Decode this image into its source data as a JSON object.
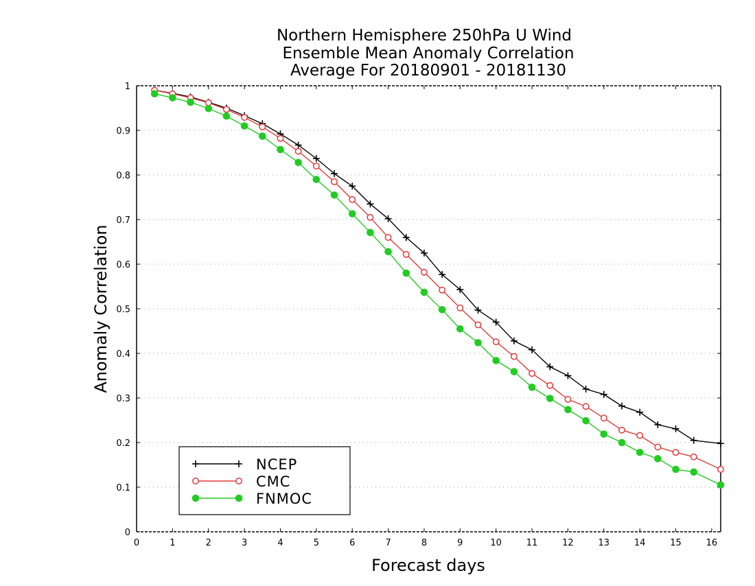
{
  "chart_data": {
    "type": "line",
    "title_lines": [
      "Northern Hemisphere 250hPa U Wind",
      "Ensemble Mean Anomaly Correlation",
      "Average For 20180901 - 20181130"
    ],
    "xlabel": "Forecast days",
    "ylabel": "Anomaly Correlation",
    "xlim": [
      0,
      16.25
    ],
    "ylim": [
      0,
      1
    ],
    "x_ticks": [
      0,
      1,
      2,
      3,
      4,
      5,
      6,
      7,
      8,
      9,
      10,
      11,
      12,
      13,
      14,
      15,
      16
    ],
    "y_ticks": [
      0,
      0.1,
      0.2,
      0.3,
      0.4,
      0.5,
      0.6,
      0.7,
      0.8,
      0.9,
      1
    ],
    "grid": "horizontal dotted",
    "legend_position": "bottom-left",
    "x": [
      0.5,
      1,
      1.5,
      2,
      2.5,
      3,
      3.5,
      4,
      4.5,
      5,
      5.5,
      6,
      6.5,
      7,
      7.5,
      8,
      8.5,
      9,
      9.5,
      10,
      10.5,
      11,
      11.5,
      12,
      12.5,
      13,
      13.5,
      14,
      14.5,
      15,
      15.5,
      16.25
    ],
    "series": [
      {
        "name": "NCEP",
        "color": "#000000",
        "marker": "plus",
        "values": [
          0.99,
          0.983,
          0.975,
          0.963,
          0.95,
          0.933,
          0.915,
          0.892,
          0.867,
          0.837,
          0.803,
          0.775,
          0.735,
          0.702,
          0.66,
          0.625,
          0.577,
          0.543,
          0.497,
          0.47,
          0.428,
          0.408,
          0.37,
          0.35,
          0.32,
          0.308,
          0.282,
          0.268,
          0.24,
          0.231,
          0.205,
          0.198
        ]
      },
      {
        "name": "CMC",
        "color": "#e23a3a",
        "marker": "open-circle",
        "values": [
          0.99,
          0.982,
          0.973,
          0.962,
          0.947,
          0.929,
          0.908,
          0.882,
          0.853,
          0.82,
          0.785,
          0.745,
          0.705,
          0.66,
          0.622,
          0.582,
          0.542,
          0.502,
          0.464,
          0.426,
          0.393,
          0.355,
          0.328,
          0.297,
          0.281,
          0.255,
          0.228,
          0.216,
          0.19,
          0.178,
          0.168,
          0.14
        ]
      },
      {
        "name": "FNMOC",
        "color": "#22cc22",
        "marker": "filled-circle",
        "values": [
          0.982,
          0.973,
          0.963,
          0.949,
          0.932,
          0.91,
          0.887,
          0.857,
          0.828,
          0.79,
          0.755,
          0.713,
          0.671,
          0.628,
          0.58,
          0.537,
          0.498,
          0.455,
          0.424,
          0.384,
          0.359,
          0.324,
          0.299,
          0.274,
          0.249,
          0.219,
          0.2,
          0.178,
          0.164,
          0.14,
          0.134,
          0.105
        ]
      }
    ]
  }
}
